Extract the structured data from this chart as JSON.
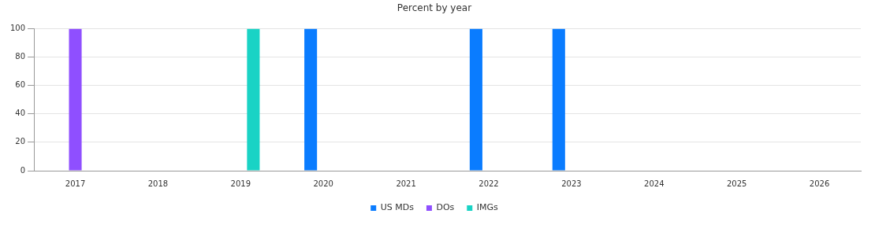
{
  "chart_data": {
    "type": "bar",
    "title": "Percent by year",
    "categories": [
      "2017",
      "2018",
      "2019",
      "2020",
      "2021",
      "2022",
      "2023",
      "2024",
      "2025",
      "2026"
    ],
    "series": [
      {
        "name": "US MDs",
        "color": "#0a7cff",
        "values": [
          0,
          0,
          0,
          100,
          0,
          100,
          100,
          0,
          0,
          0
        ]
      },
      {
        "name": "DOs",
        "color": "#8f4fff",
        "values": [
          100,
          0,
          0,
          0,
          0,
          0,
          0,
          0,
          0,
          0
        ]
      },
      {
        "name": "IMGs",
        "color": "#19d3c5",
        "values": [
          0,
          0,
          100,
          0,
          0,
          0,
          0,
          0,
          0,
          0
        ]
      }
    ],
    "ylim": [
      0,
      100
    ],
    "yticks": [
      0,
      20,
      40,
      60,
      80,
      100
    ],
    "grid": "y",
    "legend": "bottom"
  }
}
